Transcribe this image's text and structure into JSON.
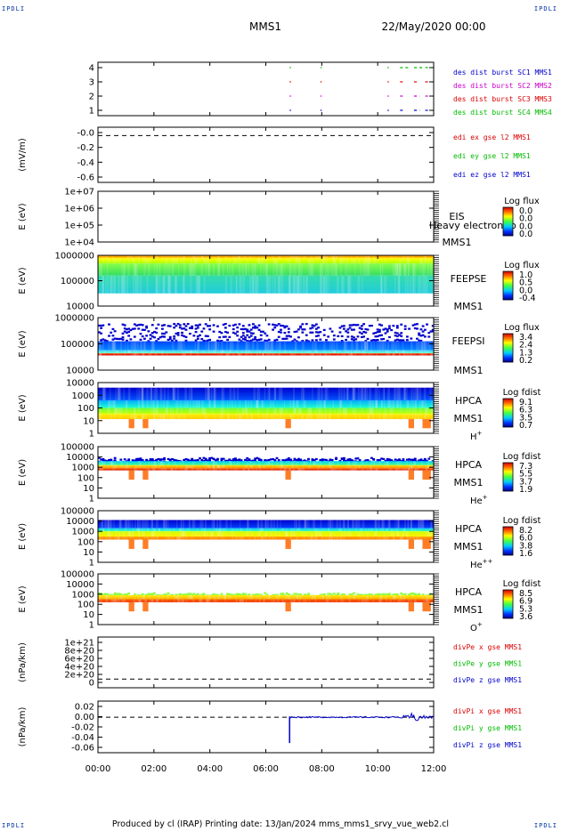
{
  "corner_tag": "IPDLI",
  "header": {
    "title": "MMS1",
    "datetime": "22/May/2020 00:00"
  },
  "footer": {
    "text": "Produced by cl (IRAP)   Printing date: 13/Jan/2024   mms_mms1_srvy_vue_web2.cl"
  },
  "colors": {
    "red": "#dd0000",
    "magenta": "#cc00cc",
    "green": "#00bb00",
    "blue": "#0000cc",
    "axis": "#000000"
  },
  "chart_data": {
    "type": "multi-panel",
    "x_ticks": [
      "00:00",
      "02:00",
      "04:00",
      "06:00",
      "08:00",
      "10:00",
      "12:00"
    ],
    "x_range_hours": [
      0,
      12
    ],
    "panels": [
      {
        "id": "burst",
        "kind": "line",
        "ylabel": "",
        "yticks": [
          "4",
          "3",
          "2",
          "1"
        ],
        "ylim": [
          0.5,
          4.5
        ],
        "legend": [
          {
            "text": "des dist burst SC1 MMS1",
            "color": "#0000cc"
          },
          {
            "text": "des dist burst SC2 MMS2",
            "color": "#cc00cc"
          },
          {
            "text": "des dist burst SC3 MMS3",
            "color": "#dd0000"
          },
          {
            "text": "des dist burst SC4 MMS4",
            "color": "#00bb00"
          }
        ],
        "series": [
          {
            "level": 4,
            "color": "#00bb00",
            "intervals": [
              [
                6.85,
                6.9
              ],
              [
                7.95,
                8.0
              ],
              [
                10.35,
                10.4
              ],
              [
                10.8,
                11.1
              ],
              [
                11.3,
                11.6
              ],
              [
                11.7,
                11.9
              ]
            ]
          },
          {
            "level": 3,
            "color": "#dd0000",
            "intervals": [
              [
                6.85,
                6.9
              ],
              [
                7.95,
                8.0
              ],
              [
                10.35,
                10.4
              ],
              [
                10.8,
                10.9
              ],
              [
                11.3,
                11.4
              ],
              [
                11.7,
                11.8
              ]
            ]
          },
          {
            "level": 2,
            "color": "#cc00cc",
            "intervals": [
              [
                6.85,
                6.9
              ],
              [
                7.95,
                8.0
              ],
              [
                10.35,
                10.4
              ],
              [
                10.8,
                10.9
              ],
              [
                11.3,
                11.5
              ],
              [
                11.7,
                11.8
              ]
            ]
          },
          {
            "level": 1,
            "color": "#0000cc",
            "intervals": [
              [
                6.85,
                6.9
              ],
              [
                7.95,
                8.0
              ],
              [
                10.35,
                10.4
              ],
              [
                10.8,
                10.9
              ],
              [
                11.3,
                11.5
              ],
              [
                11.7,
                11.8
              ]
            ]
          }
        ]
      },
      {
        "id": "edi",
        "kind": "line",
        "ylabel": "(mV/m)",
        "yticks": [
          "-0.0",
          "-0.2",
          "-0.4",
          "-0.6"
        ],
        "ylim": [
          -0.7,
          0.05
        ],
        "legend": [
          {
            "text": "edi ex gse l2 MMS1",
            "color": "#dd0000"
          },
          {
            "text": "edi ey gse l2 MMS1",
            "color": "#00bb00"
          },
          {
            "text": "edi ez gse l2 MMS1",
            "color": "#0000cc"
          }
        ],
        "zero_line": 0
      },
      {
        "id": "eis",
        "kind": "spectrogram",
        "ylabel": "E (eV)",
        "yticks": [
          "1e+07",
          "1e+06",
          "1e+05",
          "1e+04"
        ],
        "labels": [
          "EIS",
          "Heavy electron to",
          "MMS1"
        ],
        "colorbar": {
          "title": "Log flux",
          "ticks": [
            "0.0",
            "0.0",
            "0.0",
            "0.0"
          ]
        },
        "empty": true
      },
      {
        "id": "feepse",
        "kind": "spectrogram",
        "ylabel": "E (eV)",
        "yticks": [
          "1000000",
          "100000",
          "10000"
        ],
        "labels": [
          "FEEPSE",
          "MMS1"
        ],
        "colorbar": {
          "title": "Log flux",
          "ticks": [
            "1.0",
            "0.5",
            "0.0",
            "-0.4"
          ]
        },
        "bands": [
          {
            "from": 0.0,
            "to": 0.06,
            "colors": [
              "#ff8800",
              "#ffdd00"
            ]
          },
          {
            "from": 0.06,
            "to": 0.16,
            "colors": [
              "#ffff00",
              "#aaff00"
            ]
          },
          {
            "from": 0.16,
            "to": 0.4,
            "colors": [
              "#88ff44",
              "#33dd66"
            ]
          },
          {
            "from": 0.4,
            "to": 0.75,
            "colors": [
              "#33ddaa",
              "#22ccdd"
            ]
          }
        ]
      },
      {
        "id": "feepsi",
        "kind": "spectrogram",
        "ylabel": "E (eV)",
        "yticks": [
          "1000000",
          "100000",
          "10000"
        ],
        "labels": [
          "FEEPSI",
          "MMS1"
        ],
        "colorbar": {
          "title": "Log flux",
          "ticks": [
            "3.4",
            "2.4",
            "1.3",
            "0.2"
          ]
        },
        "bands": [
          {
            "from": 0.1,
            "to": 0.45,
            "colors": [
              "#0000cc",
              "#0000aa"
            ],
            "sparse": true
          },
          {
            "from": 0.45,
            "to": 0.62,
            "colors": [
              "#0044ff",
              "#0088ff"
            ]
          },
          {
            "from": 0.62,
            "to": 0.68,
            "colors": [
              "#44ccff",
              "#66ffcc"
            ]
          },
          {
            "from": 0.68,
            "to": 0.72,
            "colors": [
              "#ff4400",
              "#cc0000"
            ]
          }
        ]
      },
      {
        "id": "hpca_h",
        "kind": "spectrogram",
        "ylabel": "E (eV)",
        "yticks": [
          "10000",
          "1000",
          "100",
          "10",
          "1"
        ],
        "labels": [
          "HPCA",
          "MMS1",
          "H+"
        ],
        "colorbar": {
          "title": "Log fdist",
          "ticks": [
            "9.1",
            "6.3",
            "3.5",
            "0.7"
          ]
        },
        "bands": [
          {
            "from": 0.1,
            "to": 0.35,
            "colors": [
              "#0000cc",
              "#0055ff"
            ]
          },
          {
            "from": 0.35,
            "to": 0.5,
            "colors": [
              "#00aaff",
              "#22ffcc"
            ]
          },
          {
            "from": 0.5,
            "to": 0.62,
            "colors": [
              "#66ff44",
              "#ccff00"
            ]
          },
          {
            "from": 0.62,
            "to": 0.72,
            "colors": [
              "#ffee00",
              "#ffcc00"
            ]
          }
        ]
      },
      {
        "id": "hpca_he",
        "kind": "spectrogram",
        "ylabel": "E (eV)",
        "yticks": [
          "100000",
          "10000",
          "1000",
          "100",
          "10",
          "1"
        ],
        "labels": [
          "HPCA",
          "MMS1",
          "He+"
        ],
        "colorbar": {
          "title": "Log fdist",
          "ticks": [
            "7.3",
            "5.5",
            "3.7",
            "1.9"
          ]
        },
        "bands": [
          {
            "from": 0.2,
            "to": 0.28,
            "colors": [
              "#0000cc",
              "#0044ff"
            ],
            "sparse": true
          },
          {
            "from": 0.28,
            "to": 0.36,
            "colors": [
              "#00ccff",
              "#44ff88"
            ]
          },
          {
            "from": 0.36,
            "to": 0.42,
            "colors": [
              "#ffdd00",
              "#ff8800"
            ]
          },
          {
            "from": 0.42,
            "to": 0.46,
            "colors": [
              "#ff5500",
              "#dd2200"
            ]
          }
        ]
      },
      {
        "id": "hpca_hepp",
        "kind": "spectrogram",
        "ylabel": "E (eV)",
        "yticks": [
          "100000",
          "10000",
          "1000",
          "100",
          "10",
          "1"
        ],
        "labels": [
          "HPCA",
          "MMS1",
          "He++"
        ],
        "colorbar": {
          "title": "Log fdist",
          "ticks": [
            "8.2",
            "6.0",
            "3.8",
            "1.6"
          ]
        },
        "bands": [
          {
            "from": 0.18,
            "to": 0.34,
            "colors": [
              "#0000cc",
              "#0044ff"
            ]
          },
          {
            "from": 0.34,
            "to": 0.4,
            "colors": [
              "#00ccff",
              "#44ffaa"
            ]
          },
          {
            "from": 0.4,
            "to": 0.5,
            "colors": [
              "#ccff00",
              "#ffee00"
            ]
          },
          {
            "from": 0.5,
            "to": 0.56,
            "colors": [
              "#ffaa00",
              "#ff7700"
            ]
          }
        ]
      },
      {
        "id": "hpca_o",
        "kind": "spectrogram",
        "ylabel": "E (eV)",
        "yticks": [
          "100000",
          "10000",
          "1000",
          "100",
          "10",
          "1"
        ],
        "labels": [
          "HPCA",
          "MMS1",
          "O+"
        ],
        "colorbar": {
          "title": "Log fdist",
          "ticks": [
            "8.5",
            "6.9",
            "5.3",
            "3.6"
          ]
        },
        "bands": [
          {
            "from": 0.36,
            "to": 0.42,
            "colors": [
              "#88ff44",
              "#ccff00"
            ],
            "sparse": true
          },
          {
            "from": 0.42,
            "to": 0.5,
            "colors": [
              "#ffee00",
              "#ffaa00"
            ]
          },
          {
            "from": 0.5,
            "to": 0.56,
            "colors": [
              "#ff6600",
              "#ee3300"
            ]
          }
        ]
      },
      {
        "id": "divpe",
        "kind": "line",
        "ylabel": "(nPa/km)",
        "yticks": [
          "1e+21",
          "8e+20",
          "6e+20",
          "4e+20",
          "2e+20",
          "0"
        ],
        "ylim": [
          -1e+20,
          1.1e+21
        ],
        "legend": [
          {
            "text": "divPe x gse MMS1",
            "color": "#dd0000"
          },
          {
            "text": "divPe y gse MMS1",
            "color": "#00bb00"
          },
          {
            "text": "divPe z gse MMS1",
            "color": "#0000cc"
          }
        ],
        "zero_line": 0
      },
      {
        "id": "divpi",
        "kind": "line",
        "ylabel": "(nPa/km)",
        "yticks": [
          "0.02",
          "0.00",
          "-0.02",
          "-0.04",
          "-0.06"
        ],
        "ylim": [
          -0.07,
          0.025
        ],
        "legend": [
          {
            "text": "divPi x gse MMS1",
            "color": "#dd0000"
          },
          {
            "text": "divPi y gse MMS1",
            "color": "#00bb00"
          },
          {
            "text": "divPi z gse MMS1",
            "color": "#0000cc"
          }
        ],
        "zero_line": 0
      }
    ]
  }
}
